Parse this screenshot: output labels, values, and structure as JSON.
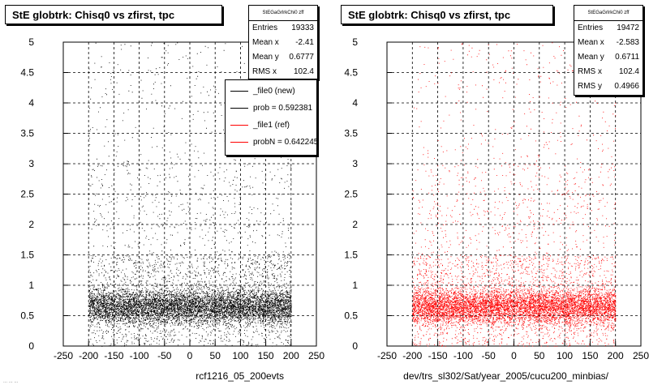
{
  "footer_text": "... ... ...",
  "chart_data": [
    {
      "type": "scatter",
      "title": "StE globtrk: Chisq0 vs zfirst, tpc",
      "xlabel": "rcf1216_05_200evts",
      "ylabel": "",
      "xlim": [
        -250,
        250
      ],
      "ylim": [
        0,
        5
      ],
      "x_ticks": [
        -250,
        -200,
        -150,
        -100,
        -50,
        0,
        50,
        100,
        150,
        200,
        250
      ],
      "y_ticks": [
        0,
        0.5,
        1,
        1.5,
        2,
        2.5,
        3,
        3.5,
        4,
        4.5,
        5
      ],
      "grid": true,
      "color": "#000000",
      "stats": {
        "name": "StEGaGrlrkChi0 zff",
        "rows": [
          {
            "label": "Entries",
            "value": "19333"
          },
          {
            "label": "Mean x",
            "value": "-2.41"
          },
          {
            "label": "Mean y",
            "value": "0.6777"
          },
          {
            "label": "RMS x",
            "value": "102.4"
          }
        ]
      },
      "legend": {
        "placement": "top-right",
        "entries": [
          {
            "label": "_file0 (new)",
            "color": "#000000"
          },
          {
            "label": "prob = 0.592381",
            "color": "#000000"
          },
          {
            "label": "_file1 (ref)",
            "color": "#ff0000"
          },
          {
            "label": "probN = 0.642245",
            "color": "#ff0000"
          }
        ]
      },
      "distribution": {
        "x_range": [
          -200,
          200
        ],
        "y_core_mean": 0.65,
        "y_core_sigma": 0.2,
        "points_shown": 9000,
        "seed": 17
      }
    },
    {
      "type": "scatter",
      "title": "StE globtrk: Chisq0 vs zfirst, tpc",
      "xlabel": "dev/trs_sl302/Sat/year_2005/cucu200_minbias/",
      "ylabel": "",
      "xlim": [
        -250,
        250
      ],
      "ylim": [
        0,
        5
      ],
      "x_ticks": [
        -250,
        -200,
        -150,
        -100,
        -50,
        0,
        50,
        100,
        150,
        200,
        250
      ],
      "y_ticks": [
        0,
        0.5,
        1,
        1.5,
        2,
        2.5,
        3,
        3.5,
        4,
        4.5,
        5
      ],
      "grid": true,
      "color": "#ff0000",
      "stats": {
        "name": "StEGaGrlrkChi0 zff",
        "rows": [
          {
            "label": "Entries",
            "value": "19472"
          },
          {
            "label": "Mean x",
            "value": "-2.583"
          },
          {
            "label": "Mean y",
            "value": "0.6711"
          },
          {
            "label": "RMS x",
            "value": "102.4"
          },
          {
            "label": "RMS y",
            "value": "0.4966"
          }
        ]
      },
      "distribution": {
        "x_range": [
          -200,
          200
        ],
        "y_core_mean": 0.65,
        "y_core_sigma": 0.2,
        "points_shown": 9000,
        "seed": 29
      }
    }
  ]
}
